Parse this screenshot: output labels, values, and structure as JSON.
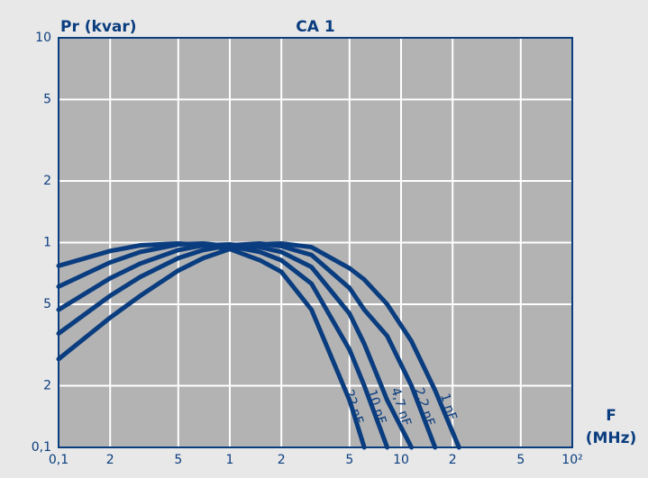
{
  "chart_data": {
    "type": "line",
    "title": "CA 1",
    "y_label": "Pr (kvar)",
    "x_label": [
      "F",
      "(MHz)"
    ],
    "x": [
      0.1,
      0.2,
      0.3,
      0.5,
      0.7,
      1,
      1.5,
      2,
      3,
      5,
      6.1,
      8.3,
      11.5,
      15.8,
      21.8
    ],
    "series": [
      {
        "name": "22 nF",
        "color": "#0a3d7f",
        "values": [
          0.77,
          0.91,
          0.97,
          0.99,
          0.97,
          0.93,
          0.82,
          0.72,
          0.47,
          0.17,
          0.1,
          null,
          null,
          null,
          null
        ]
      },
      {
        "name": "10 nF",
        "color": "#0a3d7f",
        "values": [
          0.61,
          0.8,
          0.9,
          0.98,
          0.99,
          0.96,
          0.9,
          0.82,
          0.63,
          0.3,
          0.2,
          0.1,
          null,
          null,
          null
        ]
      },
      {
        "name": "4,7 nF",
        "color": "#0a3d7f",
        "values": [
          0.47,
          0.67,
          0.79,
          0.92,
          0.97,
          0.98,
          0.95,
          0.9,
          0.76,
          0.45,
          0.32,
          0.17,
          0.1,
          null,
          null
        ]
      },
      {
        "name": "2,2 nF",
        "color": "#0a3d7f",
        "values": [
          0.36,
          0.55,
          0.68,
          0.84,
          0.92,
          0.97,
          0.99,
          0.96,
          0.87,
          0.6,
          0.47,
          0.35,
          0.2,
          0.1,
          null
        ]
      },
      {
        "name": "1 nF",
        "color": "#0a3d7f",
        "values": [
          0.27,
          0.43,
          0.55,
          0.73,
          0.84,
          0.93,
          0.98,
          0.99,
          0.95,
          0.75,
          0.66,
          0.5,
          0.33,
          0.19,
          0.1
        ]
      }
    ],
    "xlim": [
      0.1,
      100
    ],
    "ylim": [
      0.1,
      10
    ],
    "xscale": "log",
    "yscale": "log",
    "grid": true,
    "xticks": [
      {
        "value": 0.1,
        "label": "0,1"
      },
      {
        "value": 0.2,
        "label": "2"
      },
      {
        "value": 0.5,
        "label": "5"
      },
      1,
      {
        "value": 2,
        "label": "2"
      },
      {
        "value": 5,
        "label": "5"
      },
      10,
      {
        "value": 20,
        "label": "2"
      },
      {
        "value": 50,
        "label": "5"
      },
      {
        "value": 100,
        "label": "10²"
      }
    ],
    "yticks": [
      {
        "value": 0.1,
        "label": "0,1"
      },
      {
        "value": 0.2,
        "label": "2"
      },
      {
        "value": 0.5,
        "label": "5"
      },
      1,
      2,
      5,
      10
    ]
  }
}
